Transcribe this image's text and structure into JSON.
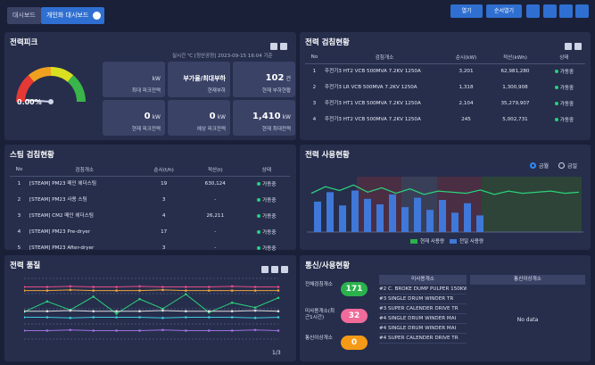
{
  "tabs": [
    "대시보드",
    "개인화 대시보드"
  ],
  "toolbar": [
    "열기",
    "순서열기"
  ],
  "peak": {
    "title": "전력피크",
    "percent": "0.00%",
    "timestamp": "실시간 ℃ [정산공정] 2023-09-15 16:04 기준",
    "boxes": [
      {
        "unit": "kW",
        "label": "최대 피크전력"
      },
      {
        "value": "부가율/최대부하",
        "label": "현재부하"
      },
      {
        "value": "102",
        "unit": "건",
        "label": "현재 부하현황"
      },
      {
        "value": "0",
        "unit": "kW",
        "label": "현재 피크전력"
      },
      {
        "value": "0",
        "unit": "kW",
        "label": "예상 피크전력"
      },
      {
        "value": "1,410",
        "unit": "kW",
        "label": "현재 최대전력"
      }
    ]
  },
  "power_meter": {
    "title": "전력 검침현황",
    "columns": [
      "No",
      "검침개소",
      "순시(kW)",
      "적산(kWh)",
      "상태"
    ],
    "rows": [
      [
        "1",
        "주전기3 HT2 VCB 500MVA 7.2KV 1250A",
        "3,201",
        "62,981,280",
        "가동중"
      ],
      [
        "2",
        "주전기3 LR VCB 500MVA 7.2KV 1250A",
        "1,318",
        "1,300,908",
        "가동중"
      ],
      [
        "3",
        "주전기3 HT1 VCB 500MVA 7.2KV 1250A",
        "2,104",
        "35,279,907",
        "가동중"
      ],
      [
        "4",
        "주전기3 HT2 VCB 500MVA 7.2KV 1250A",
        "245",
        "5,002,731",
        "가동중"
      ]
    ]
  },
  "steam_meter": {
    "title": "스팀 검침현황",
    "columns": [
      "No",
      "검침개소",
      "순시(t/h)",
      "적산(t)",
      "상태"
    ],
    "rows": [
      [
        "1",
        "[STEAM] PM23 메인 헤더스팀",
        "19",
        "630,124",
        "가동중"
      ],
      [
        "2",
        "[STEAM] PM23 사용 스팀",
        "3",
        "-",
        "가동중"
      ],
      [
        "3",
        "[STEAM] CM2 메인 헤더스팀",
        "4",
        "26,211",
        "가동중"
      ],
      [
        "4",
        "[STEAM] PM23 Pre-dryer",
        "17",
        "-",
        "가동중"
      ],
      [
        "5",
        "[STEAM] PM23 After-dryer",
        "3",
        "-",
        "가동중"
      ]
    ]
  },
  "usage": {
    "title": "전력 사용현황",
    "options": [
      "금월",
      "금일"
    ],
    "legend": [
      "현재 사용량",
      "전일 사용량"
    ],
    "ylim": [
      0,
      100
    ],
    "bars": [
      55,
      72,
      48,
      75,
      60,
      50,
      68,
      45,
      62,
      40,
      58,
      35,
      52,
      30
    ],
    "line": [
      70,
      82,
      75,
      85,
      72,
      80,
      70,
      78,
      68,
      74,
      72,
      70,
      76,
      68,
      74,
      70,
      72,
      74,
      70,
      72
    ]
  },
  "quality": {
    "title": "전력 품질",
    "ylim": [
      0,
      100
    ],
    "page": "1/3",
    "series": [
      {
        "color": "#e84a8a",
        "values": [
          86,
          86,
          87,
          86,
          86,
          87,
          86,
          86,
          86,
          87,
          86,
          86
        ]
      },
      {
        "color": "#f0a040",
        "values": [
          80,
          80,
          81,
          80,
          80,
          80,
          81,
          80,
          80,
          80,
          80,
          80
        ]
      },
      {
        "color": "#2bd07a",
        "values": [
          45,
          62,
          48,
          70,
          42,
          66,
          50,
          74,
          44,
          60,
          52,
          68
        ]
      },
      {
        "color": "#e0e0e0",
        "values": [
          46,
          46,
          47,
          46,
          46,
          46,
          47,
          46,
          46,
          46,
          47,
          46
        ]
      },
      {
        "color": "#40c8e0",
        "values": [
          36,
          36,
          35,
          36,
          36,
          36,
          35,
          36,
          36,
          36,
          35,
          36
        ]
      },
      {
        "color": "#a070e0",
        "values": [
          14,
          14,
          15,
          14,
          14,
          14,
          15,
          14,
          14,
          14,
          15,
          14
        ]
      }
    ]
  },
  "comm": {
    "title": "통신/사용현황",
    "counters": [
      {
        "label": "전체검침개소",
        "value": 171,
        "color": "#2bb24c"
      },
      {
        "label": "미사용개소(최근1시간)",
        "value": 32,
        "color": "#f06a9a"
      },
      {
        "label": "통신이상개소",
        "value": 0,
        "color": "#f59a16"
      }
    ],
    "unused_header": "미사용개소",
    "unused": [
      "#2 C. BROKE DUMP PULPER 150KW",
      "#3 SINGLE DRUM WINDER TR",
      "#3 SUPER CALENDER DRIVE TR",
      "#4 SINGLE DRUM WINDER MAI",
      "#4 SINGLE DRUM WINDER MAI",
      "#4 SUPER CALENDER DRIVE TR"
    ],
    "error_header": "통신이상개소",
    "error_empty": "No data"
  }
}
